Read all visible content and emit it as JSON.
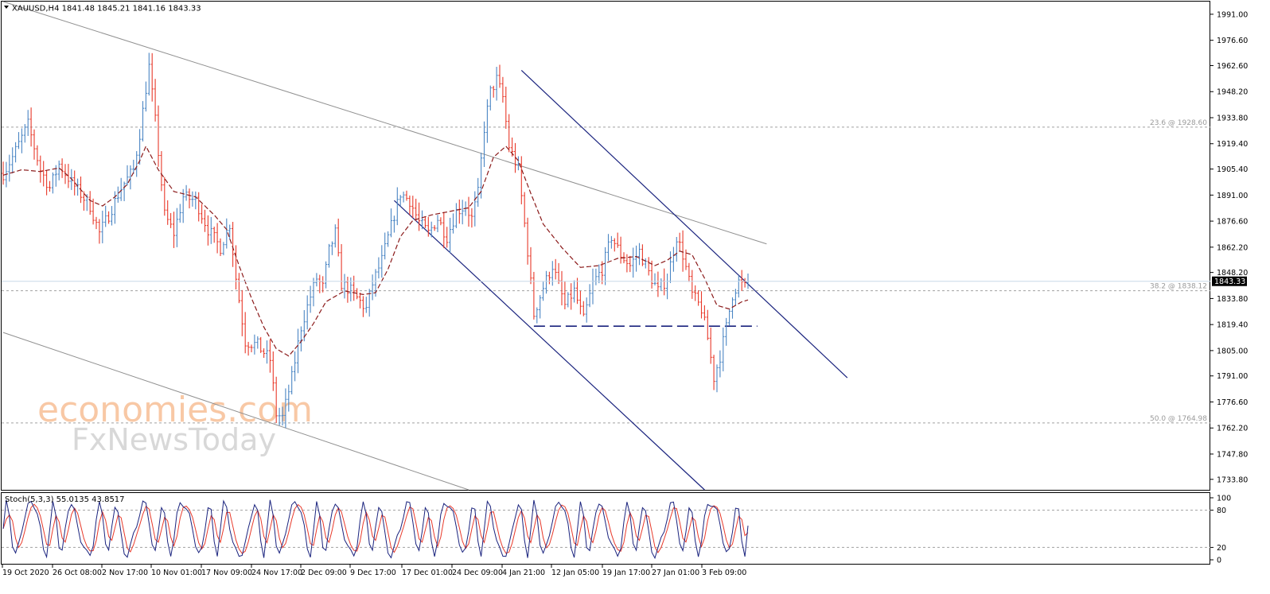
{
  "header": {
    "symbol_line": "XAUUSD,H4  1841.48 1845.21 1841.16 1843.33"
  },
  "watermark": {
    "line1": "economies.com",
    "line2": "FxNewsToday"
  },
  "colors": {
    "up": "#4b86c4",
    "down": "#e8392a",
    "ma": "#8b1a1a",
    "channel_blue": "#1a237e",
    "trend_gray": "#909090",
    "stoch_main": "#1a237e",
    "stoch_signal": "#e8392a",
    "price_badge_bg": "#000000",
    "price_badge_text": "#ffffff",
    "current_price_line": "#c8d8e8"
  },
  "chart_data": {
    "type": "candlestick",
    "symbol": "XAUUSD",
    "timeframe": "H4",
    "ohlc_header": {
      "open": 1841.48,
      "high": 1845.21,
      "low": 1841.16,
      "close": 1843.33
    },
    "current_price": 1843.33,
    "current_price_label": "1843.33",
    "y_ticks": [
      "1991.00",
      "1976.60",
      "1962.60",
      "1948.20",
      "1933.80",
      "1919.40",
      "1905.40",
      "1891.00",
      "1876.60",
      "1862.20",
      "1848.20",
      "1833.80",
      "1819.40",
      "1805.00",
      "1791.00",
      "1776.60",
      "1762.20",
      "1747.80",
      "1733.80"
    ],
    "ylim": [
      1728,
      1998
    ],
    "x_labels": [
      "19 Oct 2020",
      "26 Oct 08:00",
      "2 Nov 17:00",
      "10 Nov 01:00",
      "17 Nov 09:00",
      "24 Nov 17:00",
      "2 Dec 09:00",
      "9 Dec 17:00",
      "17 Dec 01:00",
      "24 Dec 09:00",
      "4 Jan 21:00",
      "12 Jan 05:00",
      "19 Jan 17:00",
      "27 Jan 01:00",
      "3 Feb 09:00"
    ],
    "fibonacci_levels": [
      {
        "label": "23.6 @ 1928.60",
        "value": 1928.6
      },
      {
        "label": "38.2 @ 1838.12",
        "value": 1838.12
      },
      {
        "label": "50.0 @ 1764.98",
        "value": 1764.98
      }
    ],
    "price_anchors": [
      [
        0,
        1903
      ],
      [
        3,
        1912
      ],
      [
        8,
        1930
      ],
      [
        12,
        1905
      ],
      [
        15,
        1895
      ],
      [
        18,
        1908
      ],
      [
        22,
        1898
      ],
      [
        28,
        1885
      ],
      [
        31,
        1870
      ],
      [
        34,
        1880
      ],
      [
        38,
        1895
      ],
      [
        42,
        1905
      ],
      [
        44,
        1925
      ],
      [
        46,
        1950
      ],
      [
        47,
        1962
      ],
      [
        49,
        1932
      ],
      [
        52,
        1880
      ],
      [
        55,
        1870
      ],
      [
        58,
        1890
      ],
      [
        62,
        1888
      ],
      [
        66,
        1872
      ],
      [
        70,
        1862
      ],
      [
        73,
        1875
      ],
      [
        75,
        1845
      ],
      [
        78,
        1810
      ],
      [
        82,
        1808
      ],
      [
        86,
        1800
      ],
      [
        88,
        1770
      ],
      [
        90,
        1768
      ],
      [
        93,
        1790
      ],
      [
        96,
        1818
      ],
      [
        99,
        1835
      ],
      [
        101,
        1845
      ],
      [
        103,
        1840
      ],
      [
        105,
        1860
      ],
      [
        107,
        1870
      ],
      [
        109,
        1842
      ],
      [
        112,
        1838
      ],
      [
        115,
        1832
      ],
      [
        117,
        1828
      ],
      [
        119,
        1842
      ],
      [
        122,
        1855
      ],
      [
        126,
        1880
      ],
      [
        128,
        1892
      ],
      [
        131,
        1888
      ],
      [
        134,
        1876
      ],
      [
        137,
        1870
      ],
      [
        140,
        1878
      ],
      [
        143,
        1868
      ],
      [
        146,
        1882
      ],
      [
        149,
        1885
      ],
      [
        151,
        1878
      ],
      [
        153,
        1892
      ],
      [
        155,
        1928
      ],
      [
        157,
        1948
      ],
      [
        159,
        1955
      ],
      [
        161,
        1945
      ],
      [
        163,
        1918
      ],
      [
        166,
        1905
      ],
      [
        169,
        1860
      ],
      [
        171,
        1825
      ],
      [
        174,
        1840
      ],
      [
        177,
        1852
      ],
      [
        181,
        1830
      ],
      [
        184,
        1838
      ],
      [
        187,
        1822
      ],
      [
        190,
        1842
      ],
      [
        193,
        1850
      ],
      [
        196,
        1868
      ],
      [
        199,
        1858
      ],
      [
        202,
        1852
      ],
      [
        205,
        1860
      ],
      [
        208,
        1848
      ],
      [
        211,
        1838
      ],
      [
        214,
        1845
      ],
      [
        217,
        1868
      ],
      [
        219,
        1858
      ],
      [
        222,
        1836
      ],
      [
        225,
        1828
      ],
      [
        227,
        1812
      ],
      [
        229,
        1790
      ],
      [
        231,
        1802
      ],
      [
        233,
        1818
      ],
      [
        235,
        1836
      ],
      [
        237,
        1843
      ],
      [
        239,
        1840
      ],
      [
        240,
        1843.33
      ]
    ],
    "ma_anchors": [
      [
        0,
        1902
      ],
      [
        6,
        1905
      ],
      [
        12,
        1904
      ],
      [
        18,
        1906
      ],
      [
        22,
        1900
      ],
      [
        28,
        1888
      ],
      [
        32,
        1885
      ],
      [
        36,
        1890
      ],
      [
        40,
        1897
      ],
      [
        44,
        1910
      ],
      [
        46,
        1918
      ],
      [
        50,
        1905
      ],
      [
        55,
        1893
      ],
      [
        62,
        1890
      ],
      [
        68,
        1880
      ],
      [
        72,
        1872
      ],
      [
        76,
        1852
      ],
      [
        80,
        1834
      ],
      [
        84,
        1818
      ],
      [
        88,
        1806
      ],
      [
        92,
        1802
      ],
      [
        96,
        1810
      ],
      [
        100,
        1820
      ],
      [
        104,
        1832
      ],
      [
        110,
        1838
      ],
      [
        116,
        1836
      ],
      [
        120,
        1837
      ],
      [
        124,
        1850
      ],
      [
        128,
        1868
      ],
      [
        132,
        1877
      ],
      [
        138,
        1880
      ],
      [
        144,
        1882
      ],
      [
        150,
        1884
      ],
      [
        154,
        1893
      ],
      [
        158,
        1912
      ],
      [
        162,
        1918
      ],
      [
        166,
        1910
      ],
      [
        170,
        1892
      ],
      [
        174,
        1875
      ],
      [
        180,
        1862
      ],
      [
        186,
        1851
      ],
      [
        192,
        1852
      ],
      [
        198,
        1856
      ],
      [
        204,
        1857
      ],
      [
        210,
        1852
      ],
      [
        214,
        1855
      ],
      [
        218,
        1860
      ],
      [
        222,
        1858
      ],
      [
        226,
        1845
      ],
      [
        230,
        1830
      ],
      [
        234,
        1828
      ],
      [
        238,
        1832
      ],
      [
        240,
        1833
      ]
    ],
    "trendlines": {
      "gray_upper": [
        [
          0,
          1998
        ],
        [
          246,
          1864
        ]
      ],
      "gray_lower": [
        [
          0,
          1815
        ],
        [
          150,
          1728
        ]
      ],
      "blue_channel_upper": [
        [
          167,
          1960
        ],
        [
          272,
          1790
        ]
      ],
      "blue_channel_lower": [
        [
          126,
          1888
        ],
        [
          226,
          1728
        ]
      ],
      "support_dashed": [
        [
          171,
          1818.5
        ],
        [
          243,
          1818.5
        ]
      ]
    },
    "stochastic": {
      "label": "Stoch(5,3,3) 55.0135 43.8517",
      "main": 55.0135,
      "signal": 43.8517,
      "y_ticks": [
        "100",
        "80",
        "20",
        "0"
      ],
      "levels": [
        80,
        20
      ],
      "ylim": [
        0,
        100
      ],
      "cycles": 34
    },
    "n_bars": 241
  }
}
